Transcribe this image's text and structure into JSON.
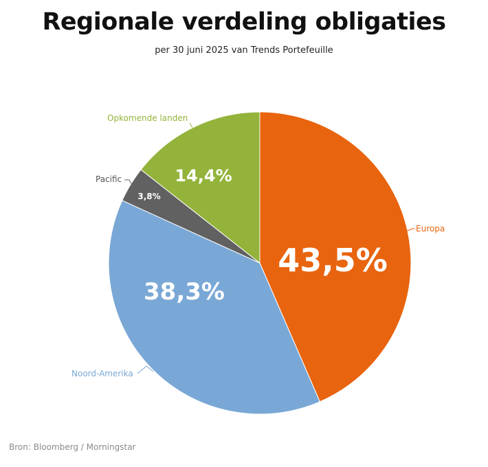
{
  "header": {
    "title": "Regionale verdeling obligaties",
    "subtitle": "per 30 juni 2025 van Trends Portefeuille"
  },
  "footer": {
    "source": "Bron: Bloomberg / Morningstar"
  },
  "chart_data": {
    "type": "pie",
    "title": "Regionale verdeling obligaties",
    "subtitle": "per 30 juni 2025 van Trends Portefeuille",
    "categories": [
      "Europa",
      "Noord-Amerika",
      "Pacific",
      "Opkomende landen"
    ],
    "values": [
      43.5,
      38.3,
      3.8,
      14.4
    ],
    "value_labels": [
      "43,5%",
      "38,3%",
      "3,8%",
      "14,4%"
    ],
    "colors": [
      "#e8640e",
      "#7aa8d6",
      "#616161",
      "#93b33a"
    ],
    "label_colors": [
      "#e8640e",
      "#7aa8d6",
      "#555555",
      "#93b33a"
    ],
    "start_angle": "12 o'clock",
    "direction": "clockwise",
    "legend": "none (callout labels)",
    "source": "Bron: Bloomberg / Morningstar"
  }
}
